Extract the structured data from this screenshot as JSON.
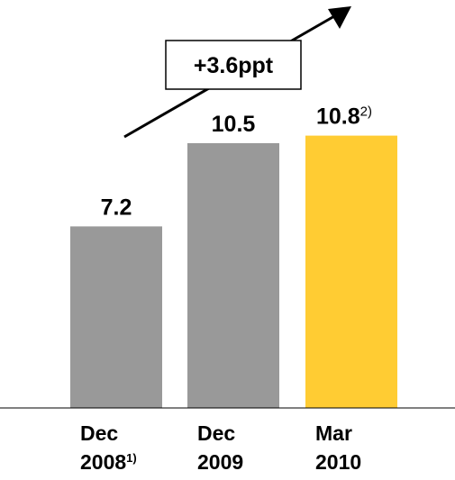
{
  "chart_data": {
    "type": "bar",
    "categories": [
      {
        "line1": "Dec",
        "line2": "2008",
        "footnote": "1)"
      },
      {
        "line1": "Dec",
        "line2": "2009",
        "footnote": ""
      },
      {
        "line1": "Mar",
        "line2": "2010",
        "footnote": ""
      }
    ],
    "values": [
      7.2,
      10.5,
      10.8
    ],
    "value_labels": [
      {
        "text": "7.2",
        "footnote": ""
      },
      {
        "text": "10.5",
        "footnote": ""
      },
      {
        "text": "10.8",
        "footnote": "2)"
      }
    ],
    "bar_colors": [
      "#999999",
      "#999999",
      "#FFCC33"
    ],
    "ylim": [
      0,
      11.5
    ],
    "grid": false,
    "annotation": {
      "text": "+3.6ppt",
      "arrow": "up-right"
    }
  }
}
